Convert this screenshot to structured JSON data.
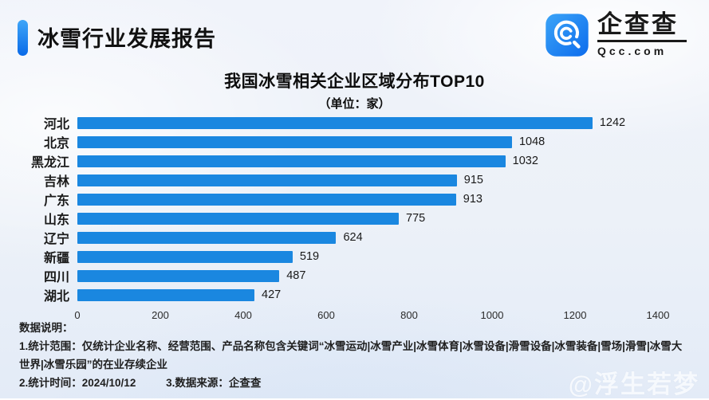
{
  "page": {
    "background_top": "#f0f3fa",
    "background_bottom": "#e3ebf7"
  },
  "header": {
    "title": "冰雪行业发展报告",
    "accent_gradient_top": "#3fa6f8",
    "accent_gradient_bottom": "#0a6ae8"
  },
  "logo": {
    "brand": "企查查",
    "domain": "Qcc.com",
    "icon": "qcc-magnifier-icon",
    "icon_gradient_top": "#3ba4f7",
    "icon_gradient_bottom": "#0d6ced"
  },
  "chart_data": {
    "type": "bar",
    "orientation": "horizontal",
    "title": "我国冰雪相关企业区域分布TOP10",
    "subtitle": "（单位：家）",
    "unit": "家",
    "categories": [
      "河北",
      "北京",
      "黑龙江",
      "吉林",
      "广东",
      "山东",
      "辽宁",
      "新疆",
      "四川",
      "湖北"
    ],
    "values": [
      1242,
      1048,
      1032,
      915,
      913,
      775,
      624,
      519,
      487,
      427
    ],
    "xlim": [
      0,
      1400
    ],
    "x_ticks": [
      0,
      200,
      400,
      600,
      800,
      1000,
      1200,
      1400
    ],
    "bar_color": "#1a87e0",
    "grid": false,
    "legend_position": "none",
    "value_labels": true
  },
  "notes": {
    "title": "数据说明：",
    "scope": "1.统计范围：仅统计企业名称、经营范围、产品名称包含关键词“冰雪运动|冰雪产业|冰雪体育|冰雪设备|滑雪设备|冰雪装备|雪场|滑雪|冰雪大世界|冰雪乐园”的在业存续企业",
    "time": "2.统计时间：2024/10/12",
    "source": "3.数据来源：企查查"
  },
  "watermark": "@浮生若梦"
}
